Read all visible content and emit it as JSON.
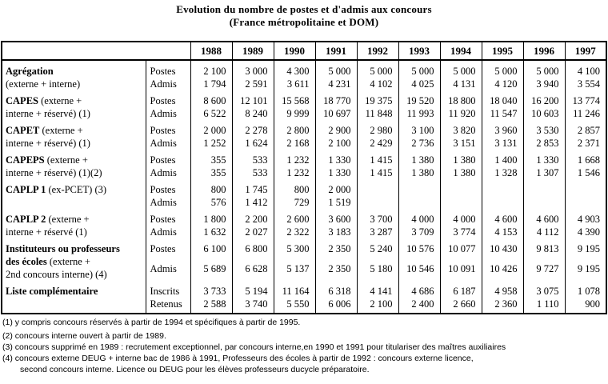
{
  "title": {
    "line1": "Evolution du nombre de postes et d'admis aux concours",
    "line2": "(France métropolitaine et DOM)"
  },
  "table": {
    "years": [
      "1988",
      "1989",
      "1990",
      "1991",
      "1992",
      "1993",
      "1994",
      "1995",
      "1996",
      "1997"
    ],
    "groups": [
      {
        "label": [
          [
            {
              "t": "Agrégation",
              "b": 1
            }
          ],
          [
            {
              "t": "(externe + interne)",
              "b": 0
            }
          ]
        ],
        "rows": [
          {
            "sub": "Postes",
            "values": [
              "2 100",
              "3 000",
              "4 300",
              "5 000",
              "5 000",
              "5 000",
              "5 000",
              "5 000",
              "5 000",
              "4 100"
            ]
          },
          {
            "sub": "Admis",
            "values": [
              "1 794",
              "2 591",
              "3 611",
              "4 231",
              "4 102",
              "4 025",
              "4 131",
              "4 120",
              "3 940",
              "3 554"
            ]
          }
        ]
      },
      {
        "label": [
          [
            {
              "t": "CAPES",
              "b": 1
            },
            {
              "t": " (externe +",
              "b": 0
            }
          ],
          [
            {
              "t": "interne + réservé) (1)",
              "b": 0
            }
          ]
        ],
        "rows": [
          {
            "sub": "Postes",
            "values": [
              "8 600",
              "12 101",
              "15 568",
              "18 770",
              "19 375",
              "19 520",
              "18 800",
              "18 040",
              "16 200",
              "13 774"
            ]
          },
          {
            "sub": "Admis",
            "values": [
              "6 522",
              "8 240",
              "9 999",
              "10 697",
              "11 848",
              "11 993",
              "11 920",
              "11 547",
              "10 603",
              "11 246"
            ]
          }
        ]
      },
      {
        "label": [
          [
            {
              "t": "CAPET",
              "b": 1
            },
            {
              "t": " (externe +",
              "b": 0
            }
          ],
          [
            {
              "t": "interne + réservé) (1)",
              "b": 0
            }
          ]
        ],
        "rows": [
          {
            "sub": "Postes",
            "values": [
              "2 000",
              "2 278",
              "2 800",
              "2 900",
              "2 980",
              "3 100",
              "3 820",
              "3 960",
              "3 530",
              "2 857"
            ]
          },
          {
            "sub": "Admis",
            "values": [
              "1 252",
              "1 624",
              "2 168",
              "2 100",
              "2 429",
              "2 736",
              "3 151",
              "3 131",
              "2 853",
              "2 371"
            ]
          }
        ]
      },
      {
        "label": [
          [
            {
              "t": "CAPEPS",
              "b": 1
            },
            {
              "t": " (externe +",
              "b": 0
            }
          ],
          [
            {
              "t": "interne + réservé) (1)(2)",
              "b": 0
            }
          ]
        ],
        "rows": [
          {
            "sub": "Postes",
            "values": [
              "355",
              "533",
              "1 232",
              "1 330",
              "1 415",
              "1 380",
              "1 380",
              "1 400",
              "1 330",
              "1 668"
            ]
          },
          {
            "sub": "Admis",
            "values": [
              "355",
              "533",
              "1 232",
              "1 330",
              "1 415",
              "1 380",
              "1 380",
              "1 328",
              "1 307",
              "1 546"
            ]
          }
        ]
      },
      {
        "label": [
          [
            {
              "t": "CAPLP 1",
              "b": 1
            },
            {
              "t": " (ex-PCET) (3)",
              "b": 0
            }
          ]
        ],
        "rows": [
          {
            "sub": "Postes",
            "values": [
              "800",
              "1 745",
              "800",
              "2 000",
              "",
              "",
              "",
              "",
              "",
              ""
            ]
          },
          {
            "sub": "Admis",
            "values": [
              "576",
              "1 412",
              "729",
              "1 519",
              "",
              "",
              "",
              "",
              "",
              ""
            ]
          }
        ]
      },
      {
        "label": [
          [
            {
              "t": "CAPLP 2",
              "b": 1
            },
            {
              "t": " (externe +",
              "b": 0
            }
          ],
          [
            {
              "t": "interne + réservé (1)",
              "b": 0
            }
          ]
        ],
        "rows": [
          {
            "sub": "Postes",
            "values": [
              "1 800",
              "2 200",
              "2 600",
              "3 600",
              "3 700",
              "4 000",
              "4 000",
              "4 600",
              "4 600",
              "4 903"
            ]
          },
          {
            "sub": "Admis",
            "values": [
              "1 632",
              "2 027",
              "2 322",
              "3 183",
              "3 287",
              "3 709",
              "3 774",
              "4 153",
              "4 112",
              "4 390"
            ]
          }
        ]
      },
      {
        "label": [
          [
            {
              "t": "Instituteurs ou professeurs",
              "b": 1
            }
          ],
          [
            {
              "t": "des écoles",
              "b": 1
            },
            {
              "t": " (externe +",
              "b": 0
            }
          ],
          [
            {
              "t": "2nd concours interne) (4)",
              "b": 0
            }
          ]
        ],
        "rows": [
          {
            "sub": "Postes",
            "values": [
              "6 100",
              "6 800",
              "5 300",
              "2 350",
              "5 240",
              "10 576",
              "10 077",
              "10 430",
              "9 813",
              "9 195"
            ]
          },
          {
            "sub": "Admis",
            "values": [
              "5 689",
              "6 628",
              "5 137",
              "2 350",
              "5 180",
              "10 546",
              "10 091",
              "10 426",
              "9 727",
              "9 195"
            ]
          }
        ]
      },
      {
        "label": [
          [
            {
              "t": "Liste complémentaire",
              "b": 1
            }
          ]
        ],
        "rows": [
          {
            "sub": "Inscrits",
            "values": [
              "3 733",
              "5 194",
              "11 164",
              "6 318",
              "4 141",
              "4 686",
              "6 187",
              "4 958",
              "3 075",
              "1 078"
            ]
          },
          {
            "sub": "Retenus",
            "values": [
              "2 588",
              "3 740",
              "5 550",
              "6 006",
              "2 100",
              "2 400",
              "2 660",
              "2 360",
              "1 110",
              "900"
            ]
          }
        ]
      }
    ]
  },
  "footnotes": [
    {
      "text": "(1) y compris concours réservés à partir de 1994 et spécifiques à partir de 1995.",
      "indent": 0,
      "sp": 0
    },
    {
      "text": "(2) concours interne ouvert à partir de 1989.",
      "indent": 0,
      "sp": 1
    },
    {
      "text": "(3) concours supprimé en 1989 : recrutement exceptionnel, par concours interne,en 1990 et 1991 pour titulariser des maîtres auxiliaires",
      "indent": 0,
      "sp": 0
    },
    {
      "text": "(4) concours externe DEUG + interne bac de 1986 à 1991, Professeurs des écoles à partir de 1992 : concours externe licence,",
      "indent": 0,
      "sp": 0
    },
    {
      "text": "second concours interne. Licence ou DEUG pour les élèves professeurs ducycle préparatoire.",
      "indent": 1,
      "sp": 0
    }
  ]
}
